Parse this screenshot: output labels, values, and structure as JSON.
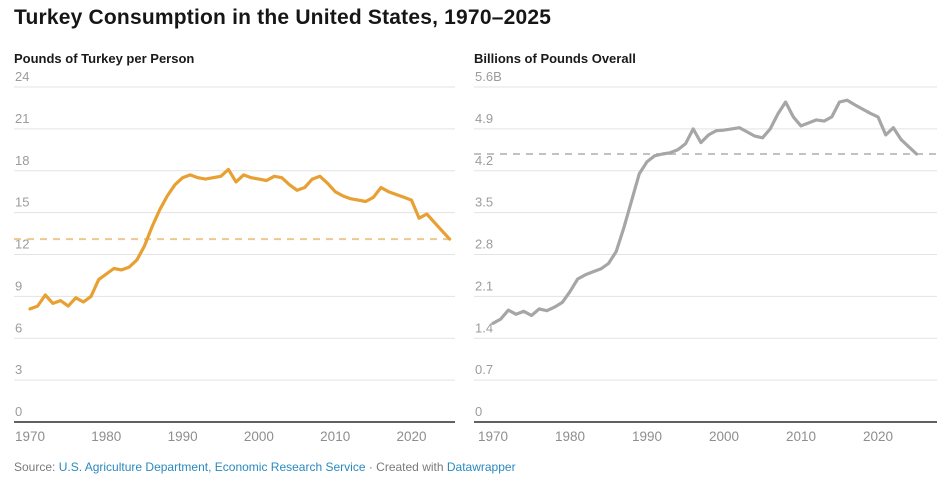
{
  "title": "Turkey Consumption in the United States, 1970–2025",
  "footer": {
    "prefix": "Source: ",
    "source_link": "U.S. Agriculture Department, Economic Research Service",
    "separator": " · Created with ",
    "tool_link": "Datawrapper"
  },
  "colors": {
    "title_text": "#161616",
    "panel_label_text": "#1a1a1a",
    "tick_label_text": "#9c9c9c",
    "x_label_text": "#8e8e8e",
    "gridline": "#e3e3e3",
    "axis_line": "#2d2d2d",
    "footer_text": "#7a7a7a",
    "footer_link": "#2989be",
    "per_capita_line": "#e8a033",
    "per_capita_dashed": "#edc98f",
    "overall_line": "#a6a6a6",
    "overall_dashed": "#c2c2c2",
    "background": "#ffffff"
  },
  "chart_data": [
    {
      "type": "line",
      "title": "Pounds of Turkey per Person",
      "xlabel": "",
      "ylabel": "Pounds of Turkey per Person",
      "ylim": [
        0,
        24
      ],
      "yticks": [
        0,
        3,
        6,
        9,
        12,
        15,
        18,
        21,
        24
      ],
      "ytick_labels": [
        "0",
        "3",
        "6",
        "9",
        "12",
        "15",
        "18",
        "21",
        "24"
      ],
      "xticks": [
        1970,
        1980,
        1990,
        2000,
        2010,
        2020
      ],
      "xtick_labels": [
        "1970",
        "1980",
        "1990",
        "2000",
        "2010",
        "2020"
      ],
      "grid": true,
      "legend_position": "none",
      "reference_line": 13.1,
      "reference_style": "dashed",
      "line_color": "#e8a033",
      "reference_color": "#edc98f",
      "x": [
        1970,
        1971,
        1972,
        1973,
        1974,
        1975,
        1976,
        1977,
        1978,
        1979,
        1980,
        1981,
        1982,
        1983,
        1984,
        1985,
        1986,
        1987,
        1988,
        1989,
        1990,
        1991,
        1992,
        1993,
        1994,
        1995,
        1996,
        1997,
        1998,
        1999,
        2000,
        2001,
        2002,
        2003,
        2004,
        2005,
        2006,
        2007,
        2008,
        2009,
        2010,
        2011,
        2012,
        2013,
        2014,
        2015,
        2016,
        2017,
        2018,
        2019,
        2020,
        2021,
        2022,
        2023,
        2024,
        2025
      ],
      "values": [
        8.1,
        8.3,
        9.1,
        8.5,
        8.7,
        8.3,
        8.9,
        8.6,
        9.0,
        10.2,
        10.6,
        11.0,
        10.9,
        11.1,
        11.6,
        12.6,
        14.0,
        15.2,
        16.2,
        17.0,
        17.5,
        17.7,
        17.5,
        17.4,
        17.5,
        17.6,
        18.1,
        17.2,
        17.7,
        17.5,
        17.4,
        17.3,
        17.6,
        17.5,
        17.0,
        16.6,
        16.8,
        17.4,
        17.6,
        17.1,
        16.5,
        16.2,
        16.0,
        15.9,
        15.8,
        16.1,
        16.8,
        16.5,
        16.3,
        16.1,
        15.9,
        14.6,
        14.9,
        14.3,
        13.7,
        13.1
      ]
    },
    {
      "type": "line",
      "title": "Billions of Pounds Overall",
      "xlabel": "",
      "ylabel": "Billions of Pounds Overall",
      "ylim": [
        0,
        5.6
      ],
      "yticks": [
        0,
        0.7,
        1.4,
        2.1,
        2.8,
        3.5,
        4.2,
        4.9,
        5.6
      ],
      "ytick_labels": [
        "0",
        "0.7",
        "1.4",
        "2.1",
        "2.8",
        "3.5",
        "4.2",
        "4.9",
        "5.6B"
      ],
      "xticks": [
        1970,
        1980,
        1990,
        2000,
        2010,
        2020
      ],
      "xtick_labels": [
        "1970",
        "1980",
        "1990",
        "2000",
        "2010",
        "2020"
      ],
      "grid": true,
      "legend_position": "none",
      "reference_line": 4.48,
      "reference_style": "dashed",
      "line_color": "#a6a6a6",
      "reference_color": "#c2c2c2",
      "x": [
        1970,
        1971,
        1972,
        1973,
        1974,
        1975,
        1976,
        1977,
        1978,
        1979,
        1980,
        1981,
        1982,
        1983,
        1984,
        1985,
        1986,
        1987,
        1988,
        1989,
        1990,
        1991,
        1992,
        1993,
        1994,
        1995,
        1996,
        1997,
        1998,
        1999,
        2000,
        2001,
        2002,
        2003,
        2004,
        2005,
        2006,
        2007,
        2008,
        2009,
        2010,
        2011,
        2012,
        2013,
        2014,
        2015,
        2016,
        2017,
        2018,
        2019,
        2020,
        2021,
        2022,
        2023,
        2024,
        2025
      ],
      "values": [
        1.65,
        1.72,
        1.87,
        1.8,
        1.85,
        1.78,
        1.89,
        1.86,
        1.92,
        2.0,
        2.18,
        2.39,
        2.46,
        2.51,
        2.56,
        2.65,
        2.85,
        3.25,
        3.7,
        4.15,
        4.35,
        4.45,
        4.48,
        4.5,
        4.55,
        4.65,
        4.9,
        4.67,
        4.8,
        4.87,
        4.88,
        4.9,
        4.92,
        4.85,
        4.78,
        4.75,
        4.9,
        5.15,
        5.35,
        5.1,
        4.95,
        5.0,
        5.05,
        5.03,
        5.1,
        5.35,
        5.38,
        5.3,
        5.23,
        5.16,
        5.1,
        4.8,
        4.92,
        4.72,
        4.6,
        4.48
      ]
    }
  ]
}
